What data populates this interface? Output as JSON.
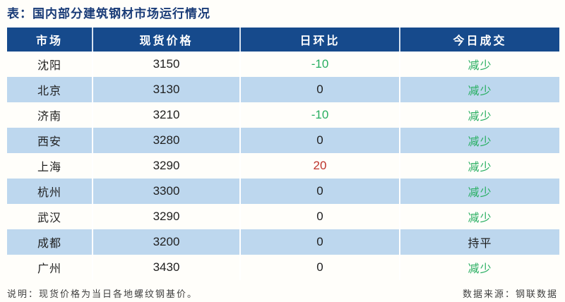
{
  "title": "表：国内部分建筑钢材市场运行情况",
  "table": {
    "columns": [
      "市场",
      "现货价格",
      "日环比",
      "今日成交"
    ],
    "rows": [
      {
        "market": "沈阳",
        "price": "3150",
        "dod": "-10",
        "dod_color": "green",
        "deal": "减少",
        "deal_color": "green"
      },
      {
        "market": "北京",
        "price": "3130",
        "dod": "0",
        "dod_color": "black",
        "deal": "减少",
        "deal_color": "green"
      },
      {
        "market": "济南",
        "price": "3210",
        "dod": "-10",
        "dod_color": "green",
        "deal": "减少",
        "deal_color": "green"
      },
      {
        "market": "西安",
        "price": "3280",
        "dod": "0",
        "dod_color": "black",
        "deal": "减少",
        "deal_color": "green"
      },
      {
        "market": "上海",
        "price": "3290",
        "dod": "20",
        "dod_color": "red",
        "deal": "减少",
        "deal_color": "green"
      },
      {
        "market": "杭州",
        "price": "3300",
        "dod": "0",
        "dod_color": "black",
        "deal": "减少",
        "deal_color": "green"
      },
      {
        "market": "武汉",
        "price": "3290",
        "dod": "0",
        "dod_color": "black",
        "deal": "减少",
        "deal_color": "green"
      },
      {
        "market": "成都",
        "price": "3200",
        "dod": "0",
        "dod_color": "black",
        "deal": "持平",
        "deal_color": "black"
      },
      {
        "market": "广州",
        "price": "3430",
        "dod": "0",
        "dod_color": "black",
        "deal": "减少",
        "deal_color": "green"
      }
    ]
  },
  "footer": {
    "note": "说明：现货价格为当日各地螺纹钢基价。",
    "source": "数据来源：钢联数据"
  },
  "colors": {
    "green": "#27ae60",
    "red": "#bd332b",
    "black": "#1f1f1f",
    "header_bg": "#164a8c",
    "alt_row_bg": "#bdd7ee",
    "title_text": "#1a3c78"
  }
}
